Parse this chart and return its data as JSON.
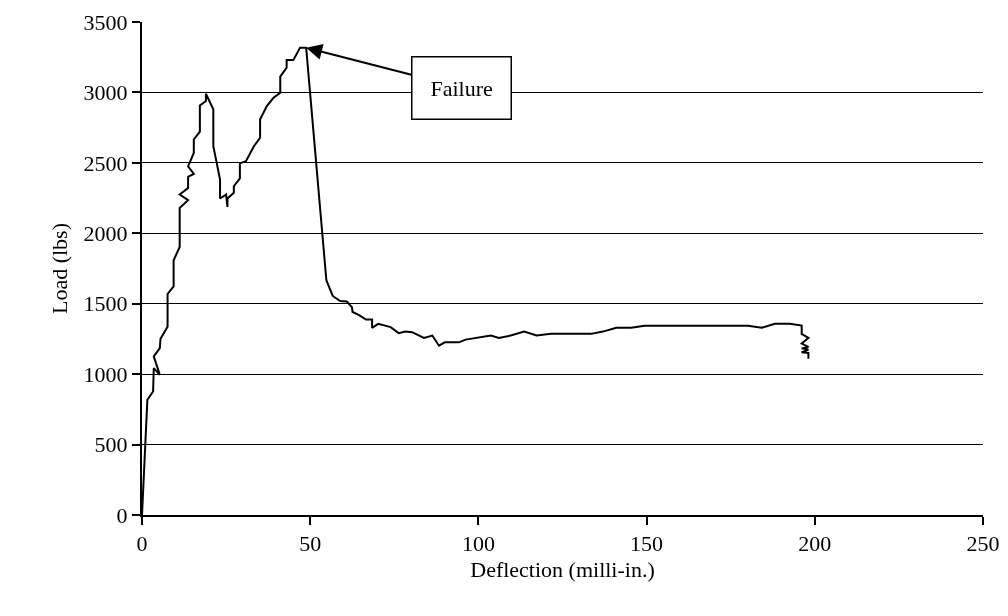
{
  "chart_data": {
    "type": "line",
    "xlabel": "Deflection (milli-in.)",
    "ylabel": "Load (lbs)",
    "x": [
      0,
      1.6,
      3.3,
      3.5,
      5.3,
      3.5,
      5.3,
      5.5,
      7.6,
      7.6,
      9.4,
      9.4,
      11.2,
      11.2,
      13.7,
      11.2,
      13.7,
      13.7,
      15.4,
      13.7,
      15.4,
      15.4,
      17.2,
      17.2,
      19.0,
      19.0,
      21.2,
      21.2,
      23.2,
      23.2,
      25.0,
      25.4,
      25.4,
      27.3,
      27.3,
      29.1,
      29.1,
      30.9,
      33.3,
      35.1,
      35.1,
      37.1,
      39.1,
      41.1,
      41.1,
      43.0,
      43.0,
      45.0,
      47.0,
      48.8,
      54.8,
      56.7,
      58.9,
      60.9,
      62.4,
      62.6,
      64.4,
      66.6,
      68.4,
      68.4,
      70.2,
      73.9,
      76.3,
      78.3,
      80.3,
      83.8,
      86.3,
      88.3,
      90.0,
      94.2,
      96.2,
      103.7,
      106.1,
      109.6,
      113.6,
      117.3,
      121.6,
      133.5,
      137.0,
      141.0,
      145.4,
      149.4,
      180.2,
      184.2,
      188.1,
      192.6,
      196.1,
      196.1,
      198.1,
      196.1,
      198.1,
      196.1,
      198.1,
      196.1,
      198.1,
      198.1
    ],
    "values": [
      0,
      818,
      877,
      1043,
      995,
      1126,
      1185,
      1251,
      1337,
      1569,
      1623,
      1808,
      1903,
      2180,
      2235,
      2275,
      2322,
      2400,
      2422,
      2476,
      2570,
      2666,
      2721,
      2908,
      2939,
      2991,
      2880,
      2619,
      2382,
      2247,
      2275,
      2187,
      2247,
      2287,
      2334,
      2389,
      2496,
      2512,
      2619,
      2678,
      2808,
      2903,
      2962,
      2998,
      3112,
      3176,
      3230,
      3230,
      3318,
      3318,
      1667,
      1555,
      1519,
      1516,
      1476,
      1441,
      1421,
      1388,
      1388,
      1329,
      1357,
      1334,
      1291,
      1302,
      1298,
      1257,
      1274,
      1202,
      1226,
      1226,
      1245,
      1274,
      1257,
      1274,
      1302,
      1274,
      1286,
      1286,
      1302,
      1329,
      1329,
      1343,
      1343,
      1329,
      1357,
      1357,
      1345,
      1286,
      1257,
      1217,
      1193,
      1183,
      1174,
      1155,
      1150,
      1110
    ],
    "color": "#000000",
    "marker": "none",
    "line_style": "solid",
    "xlim": [
      0,
      250
    ],
    "xticks": [
      0,
      50,
      100,
      150,
      200,
      250
    ],
    "ylim": [
      0,
      3500
    ],
    "yticks": [
      0,
      500,
      1000,
      1500,
      2000,
      2500,
      3000,
      3500
    ],
    "grid": "y",
    "annotations": [
      {
        "text": "Failure",
        "x": 48.8,
        "y": 3318
      }
    ]
  }
}
